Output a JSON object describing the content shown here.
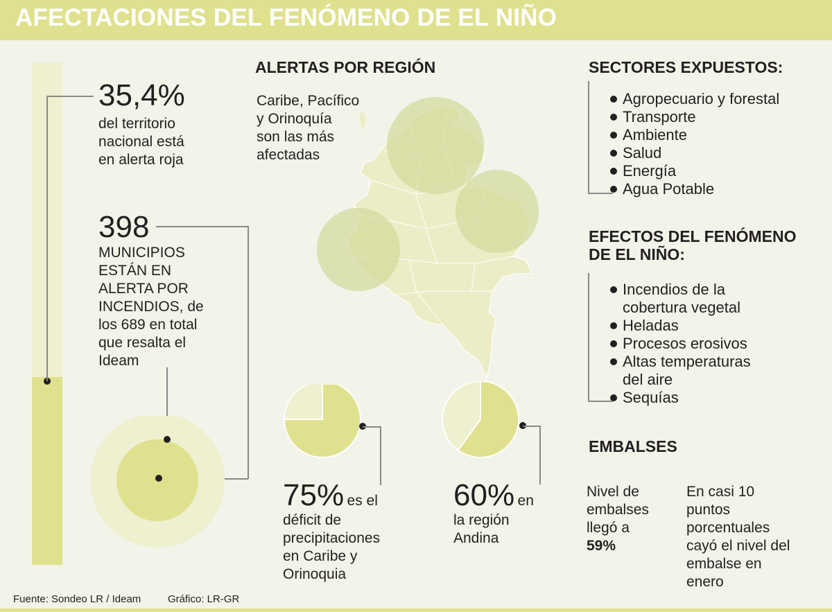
{
  "title": "AFECTACIONES DEL FENÓMENO DE EL NIÑO",
  "territory": {
    "pct": "35,4%",
    "line1": "del territorio",
    "line2": "nacional está",
    "line3": "en alerta roja",
    "value": 35.4
  },
  "municipios": {
    "number": "398",
    "lines": [
      "MUNICIPIOS",
      "ESTÁN EN",
      "ALERTA POR",
      "INCENDIOS, de",
      "los 689 en total",
      "que resalta el",
      "Ideam"
    ],
    "value": 398,
    "total": 689
  },
  "alertas": {
    "heading": "ALERTAS POR REGIÓN",
    "lines": [
      "Caribe, Pacífico",
      "y Orinoquía",
      "son las más",
      "afectadas"
    ]
  },
  "sectores": {
    "heading": "SECTORES EXPUESTOS:",
    "items": [
      "Agropecuario y forestal",
      "Transporte",
      "Ambiente",
      "Salud",
      "Energía",
      "Agua Potable"
    ]
  },
  "efectos": {
    "heading_line1": "EFECTOS DEL FENÓMENO",
    "heading_line2": "DE EL NIÑO:",
    "items": [
      {
        "line1": "Incendios de la",
        "line2": "cobertura vegetal"
      },
      {
        "line1": "Heladas",
        "line2": ""
      },
      {
        "line1": "Procesos erosivos",
        "line2": ""
      },
      {
        "line1": "Altas temperaturas",
        "line2": "del aire"
      },
      {
        "line1": "Sequías",
        "line2": ""
      }
    ]
  },
  "deficit": {
    "pct": "75%",
    "inline": "es el",
    "lines": [
      "déficit de",
      "precipitaciones",
      "en Caribe y",
      "Orinoquia"
    ]
  },
  "andina": {
    "pct": "60%",
    "inline": "en",
    "lines": [
      "la región",
      "Andina"
    ]
  },
  "embalses": {
    "heading": "EMBALSES",
    "left_lines": [
      "Nivel de",
      "embalses",
      "llegó a"
    ],
    "left_value": "59%",
    "right_lines": [
      "En casi 10",
      "puntos",
      "porcentuales",
      "cayó el nivel del",
      "embalse en",
      "enero"
    ]
  },
  "footer": {
    "source": "Fuente: Sondeo LR / Ideam",
    "credit": "Gráfico: LR-GR"
  },
  "colors": {
    "accent": "#dfe18f",
    "light": "#eef0cf",
    "circle": "#d3d89a",
    "map": "#ecedc6",
    "background": "#f2f3e9"
  },
  "chart_data": [
    {
      "type": "bar",
      "categories": [
        "Territorio nacional"
      ],
      "values": [
        35.4
      ],
      "ylim": [
        0,
        100
      ],
      "title": "",
      "xlabel": "",
      "ylabel": ""
    },
    {
      "type": "pie",
      "categories": [
        "Déficit",
        ""
      ],
      "values": [
        75,
        25
      ],
      "title": ""
    },
    {
      "type": "pie",
      "categories": [
        "Andina",
        ""
      ],
      "values": [
        60,
        40
      ],
      "title": ""
    }
  ]
}
